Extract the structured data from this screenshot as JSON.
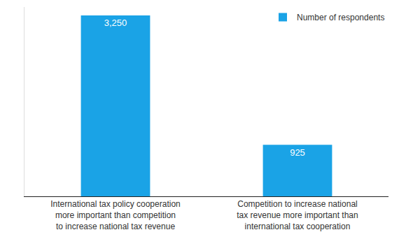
{
  "chart_data": {
    "type": "bar",
    "categories": [
      "International tax policy cooperation\nmore important than competition\nto increase national tax revenue",
      "Competition to increase national\ntax revenue more important than\ninternational tax cooperation"
    ],
    "series": [
      {
        "name": "Number of respondents",
        "color": "#1aa3e6",
        "values": [
          3250,
          925
        ],
        "value_labels": [
          "3,250",
          "925"
        ]
      }
    ],
    "ylim": [
      0,
      3400
    ],
    "yticks": [],
    "tick_labels": "x",
    "grid": false,
    "legend": "upper right",
    "data_labels": true
  }
}
